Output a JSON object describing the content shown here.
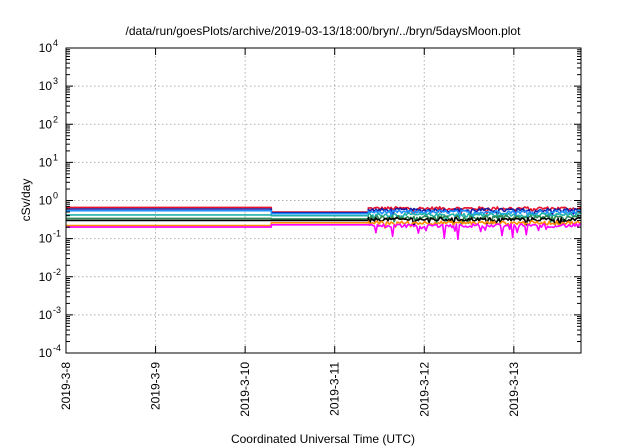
{
  "chart_data": {
    "type": "line",
    "title": "/data/run/goesPlots/archive/2019-03-13/18:00/bryn/../bryn/5daysMoon.plot",
    "xlabel": "Coordinated Universal Time (UTC)",
    "ylabel": "cSv/day",
    "yscale": "log",
    "ylim": [
      0.0001,
      10000
    ],
    "xlim": [
      "2019-03-08",
      "2019-03-13 18:00"
    ],
    "x_ticks": [
      "2019-3-8",
      "2019-3-9",
      "2019-3-10",
      "2019-3-11",
      "2019-3-12",
      "2019-3-13"
    ],
    "y_ticks": [
      {
        "value": 0.0001,
        "base": "10",
        "exp": "-4"
      },
      {
        "value": 0.001,
        "base": "10",
        "exp": "-3"
      },
      {
        "value": 0.01,
        "base": "10",
        "exp": "-2"
      },
      {
        "value": 0.1,
        "base": "10",
        "exp": "-1"
      },
      {
        "value": 1,
        "base": "10",
        "exp": "0"
      },
      {
        "value": 10,
        "base": "10",
        "exp": "1"
      },
      {
        "value": 100,
        "base": "10",
        "exp": "2"
      },
      {
        "value": 1000,
        "base": "10",
        "exp": "3"
      },
      {
        "value": 10000,
        "base": "10",
        "exp": "4"
      }
    ],
    "grid": true,
    "legend": "none",
    "series": [
      {
        "color": "#e8122b",
        "segments": [
          {
            "x": [
              "2019-03-08 00:00",
              "2019-03-10 07:00"
            ],
            "y": [
              0.66,
              0.66
            ]
          },
          {
            "x": [
              "2019-03-10 07:00",
              "2019-03-11 09:00"
            ],
            "y": [
              0.5,
              0.5
            ]
          },
          {
            "x": [
              "2019-03-11 09:00",
              "2019-03-13 18:00"
            ],
            "y": [
              0.62,
              0.62
            ],
            "noisy": true
          }
        ]
      },
      {
        "color": "#1a1aa0",
        "segments": [
          {
            "x": [
              "2019-03-08 00:00",
              "2019-03-10 07:00"
            ],
            "y": [
              0.6,
              0.6
            ]
          },
          {
            "x": [
              "2019-03-10 07:00",
              "2019-03-11 09:00"
            ],
            "y": [
              0.48,
              0.48
            ]
          },
          {
            "x": [
              "2019-03-11 09:00",
              "2019-03-13 18:00"
            ],
            "y": [
              0.56,
              0.56
            ],
            "noisy": true
          }
        ]
      },
      {
        "color": "#1e90ff",
        "segments": [
          {
            "x": [
              "2019-03-08 00:00",
              "2019-03-10 07:00"
            ],
            "y": [
              0.54,
              0.54
            ]
          },
          {
            "x": [
              "2019-03-10 07:00",
              "2019-03-11 09:00"
            ],
            "y": [
              0.45,
              0.45
            ]
          },
          {
            "x": [
              "2019-03-11 09:00",
              "2019-03-13 18:00"
            ],
            "y": [
              0.5,
              0.5
            ],
            "noisy": true
          }
        ]
      },
      {
        "color": "#20b2aa",
        "segments": [
          {
            "x": [
              "2019-03-08 00:00",
              "2019-03-10 07:00"
            ],
            "y": [
              0.42,
              0.42
            ]
          },
          {
            "x": [
              "2019-03-10 07:00",
              "2019-03-11 09:00"
            ],
            "y": [
              0.4,
              0.4
            ]
          },
          {
            "x": [
              "2019-03-11 09:00",
              "2019-03-13 18:00"
            ],
            "y": [
              0.42,
              0.42
            ],
            "noisy": true
          }
        ]
      },
      {
        "color": "#2e8b57",
        "segments": [
          {
            "x": [
              "2019-03-08 00:00",
              "2019-03-10 07:00"
            ],
            "y": [
              0.34,
              0.34
            ]
          },
          {
            "x": [
              "2019-03-10 07:00",
              "2019-03-11 09:00"
            ],
            "y": [
              0.33,
              0.33
            ]
          },
          {
            "x": [
              "2019-03-11 09:00",
              "2019-03-13 18:00"
            ],
            "y": [
              0.36,
              0.36
            ],
            "noisy": true
          }
        ]
      },
      {
        "color": "#000000",
        "segments": [
          {
            "x": [
              "2019-03-08 00:00",
              "2019-03-10 07:00"
            ],
            "y": [
              0.3,
              0.3
            ]
          },
          {
            "x": [
              "2019-03-10 07:00",
              "2019-03-11 09:00"
            ],
            "y": [
              0.3,
              0.3
            ]
          },
          {
            "x": [
              "2019-03-11 09:00",
              "2019-03-13 18:00"
            ],
            "y": [
              0.32,
              0.32
            ],
            "noisy": true
          }
        ]
      },
      {
        "color": "#ff8c00",
        "segments": [
          {
            "x": [
              "2019-03-08 00:00",
              "2019-03-10 07:00"
            ],
            "y": [
              0.22,
              0.22
            ]
          },
          {
            "x": [
              "2019-03-10 07:00",
              "2019-03-11 09:00"
            ],
            "y": [
              0.26,
              0.26
            ]
          },
          {
            "x": [
              "2019-03-11 09:00",
              "2019-03-13 18:00"
            ],
            "y": [
              0.26,
              0.26
            ],
            "noisy": true
          }
        ]
      },
      {
        "color": "#ff00ff",
        "segments": [
          {
            "x": [
              "2019-03-08 00:00",
              "2019-03-10 07:00"
            ],
            "y": [
              0.2,
              0.2
            ]
          },
          {
            "x": [
              "2019-03-10 07:00",
              "2019-03-11 09:00"
            ],
            "y": [
              0.23,
              0.23
            ]
          },
          {
            "x": [
              "2019-03-11 09:00",
              "2019-03-13 18:00"
            ],
            "y": [
              0.22,
              0.22
            ],
            "noisy": true
          }
        ]
      }
    ]
  }
}
